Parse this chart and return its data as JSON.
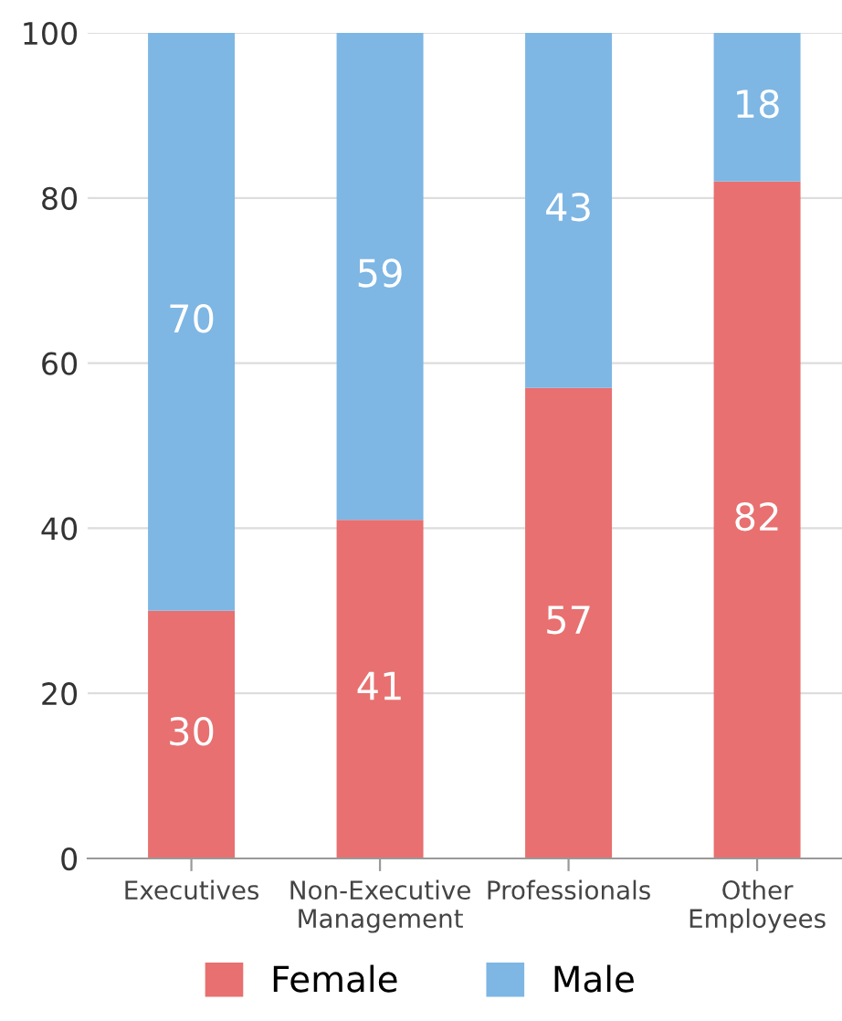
{
  "chart_data": {
    "type": "bar",
    "stacked": true,
    "categories": [
      "Executives",
      "Non-Executive\nManagement",
      "Professionals",
      "Other\nEmployees"
    ],
    "series": [
      {
        "name": "Female",
        "color": "#e87070",
        "values": [
          30,
          41,
          57,
          82
        ]
      },
      {
        "name": "Male",
        "color": "#7eb6e4",
        "values": [
          70,
          59,
          43,
          18
        ]
      }
    ],
    "ylim": [
      0,
      100
    ],
    "yticks": [
      0,
      20,
      40,
      60,
      80,
      100
    ],
    "grid": "y",
    "legend": "bottom",
    "data_labels": true
  }
}
